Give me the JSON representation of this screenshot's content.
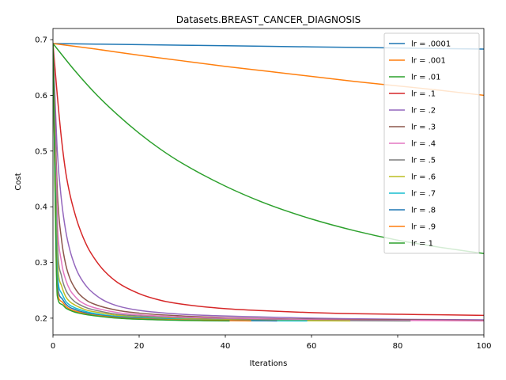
{
  "chart_data": {
    "type": "line",
    "title": "Datasets.BREAST_CANCER_DIAGNOSIS",
    "xlabel": "Iterations",
    "ylabel": "Cost",
    "xlim": [
      0,
      100
    ],
    "ylim": [
      0.17,
      0.72
    ],
    "xticks": [
      0,
      20,
      40,
      60,
      80,
      100
    ],
    "yticks": [
      0.2,
      0.3,
      0.4,
      0.5,
      0.6,
      0.7
    ],
    "ytick_labels": [
      "0.2",
      "0.3",
      "0.4",
      "0.5",
      "0.6",
      "0.7"
    ],
    "grid": false,
    "legend_position": "upper right",
    "series": [
      {
        "name": "lr = .0001",
        "color": "#1f77b4",
        "x": [
          0,
          20,
          40,
          60,
          80,
          100
        ],
        "y": [
          0.693,
          0.691,
          0.689,
          0.687,
          0.685,
          0.683
        ]
      },
      {
        "name": "lr = .001",
        "color": "#ff7f0e",
        "x": [
          0,
          10,
          20,
          30,
          40,
          50,
          60,
          70,
          80,
          90,
          100
        ],
        "y": [
          0.693,
          0.683,
          0.672,
          0.662,
          0.652,
          0.643,
          0.634,
          0.625,
          0.617,
          0.609,
          0.6
        ]
      },
      {
        "name": "lr = .01",
        "color": "#2ca02c",
        "x": [
          0,
          5,
          10,
          15,
          20,
          25,
          30,
          40,
          50,
          60,
          70,
          80,
          90,
          100
        ],
        "y": [
          0.693,
          0.645,
          0.602,
          0.565,
          0.532,
          0.503,
          0.478,
          0.437,
          0.404,
          0.378,
          0.357,
          0.34,
          0.327,
          0.316
        ]
      },
      {
        "name": "lr = .1",
        "color": "#d62728",
        "x": [
          0,
          1,
          2,
          3,
          4,
          5,
          6,
          8,
          10,
          12,
          15,
          20,
          25,
          30,
          40,
          50,
          60,
          70,
          80,
          90,
          100
        ],
        "y": [
          0.693,
          0.6,
          0.52,
          0.46,
          0.42,
          0.39,
          0.365,
          0.328,
          0.303,
          0.284,
          0.264,
          0.244,
          0.232,
          0.225,
          0.217,
          0.213,
          0.21,
          0.208,
          0.207,
          0.206,
          0.205
        ]
      },
      {
        "name": "lr = .2",
        "color": "#9467bd",
        "x": [
          0,
          1,
          2,
          3,
          4,
          5,
          6,
          8,
          10,
          12,
          15,
          20,
          30,
          40,
          60,
          80,
          100
        ],
        "y": [
          0.693,
          0.5,
          0.41,
          0.355,
          0.32,
          0.296,
          0.278,
          0.255,
          0.241,
          0.231,
          0.222,
          0.214,
          0.207,
          0.204,
          0.2,
          0.198,
          0.197
        ]
      },
      {
        "name": "lr = .3",
        "color": "#8c564b",
        "x": [
          0,
          1,
          2,
          3,
          4,
          5,
          6,
          8,
          10,
          15,
          20,
          30,
          40,
          60,
          80,
          100
        ],
        "y": [
          0.693,
          0.43,
          0.34,
          0.295,
          0.27,
          0.255,
          0.244,
          0.231,
          0.224,
          0.214,
          0.209,
          0.204,
          0.201,
          0.198,
          0.197,
          0.196
        ]
      },
      {
        "name": "lr = .4",
        "color": "#e377c2",
        "x": [
          0,
          1,
          2,
          3,
          4,
          5,
          6,
          8,
          10,
          15,
          20,
          30,
          40,
          60,
          80,
          100
        ],
        "y": [
          0.693,
          0.38,
          0.3,
          0.268,
          0.25,
          0.24,
          0.232,
          0.223,
          0.218,
          0.21,
          0.206,
          0.202,
          0.2,
          0.197,
          0.196,
          0.195
        ]
      },
      {
        "name": "lr = .5",
        "color": "#7f7f7f",
        "x": [
          0,
          1,
          2,
          3,
          4,
          5,
          6,
          8,
          10,
          15,
          20,
          30,
          40,
          60,
          83
        ],
        "y": [
          0.693,
          0.34,
          0.275,
          0.25,
          0.238,
          0.23,
          0.225,
          0.218,
          0.214,
          0.207,
          0.204,
          0.2,
          0.198,
          0.196,
          0.195
        ]
      },
      {
        "name": "lr = .6",
        "color": "#bcbd22",
        "x": [
          0,
          1,
          2,
          3,
          4,
          5,
          6,
          8,
          10,
          15,
          20,
          30,
          40,
          50,
          69
        ],
        "y": [
          0.693,
          0.31,
          0.258,
          0.238,
          0.229,
          0.224,
          0.22,
          0.214,
          0.211,
          0.205,
          0.202,
          0.199,
          0.197,
          0.196,
          0.195
        ]
      },
      {
        "name": "lr = .7",
        "color": "#17becf",
        "x": [
          0,
          1,
          2,
          3,
          4,
          5,
          6,
          8,
          10,
          15,
          20,
          30,
          40,
          59
        ],
        "y": [
          0.693,
          0.285,
          0.245,
          0.23,
          0.223,
          0.219,
          0.216,
          0.211,
          0.208,
          0.203,
          0.201,
          0.198,
          0.196,
          0.195
        ]
      },
      {
        "name": "lr = .8",
        "color": "#1f77b4",
        "x": [
          0,
          1,
          2,
          3,
          4,
          5,
          6,
          8,
          10,
          15,
          20,
          30,
          40,
          52
        ],
        "y": [
          0.693,
          0.265,
          0.236,
          0.225,
          0.219,
          0.216,
          0.213,
          0.209,
          0.206,
          0.202,
          0.2,
          0.197,
          0.196,
          0.195
        ]
      },
      {
        "name": "lr = .9",
        "color": "#ff7f0e",
        "x": [
          0,
          1,
          2,
          3,
          4,
          5,
          6,
          8,
          10,
          15,
          20,
          30,
          46
        ],
        "y": [
          0.693,
          0.25,
          0.23,
          0.221,
          0.216,
          0.213,
          0.211,
          0.207,
          0.205,
          0.201,
          0.199,
          0.197,
          0.195
        ]
      },
      {
        "name": "lr = 1",
        "color": "#2ca02c",
        "x": [
          0,
          1,
          2,
          3,
          4,
          5,
          6,
          8,
          10,
          15,
          20,
          30,
          41
        ],
        "y": [
          0.693,
          0.24,
          0.225,
          0.218,
          0.214,
          0.211,
          0.209,
          0.206,
          0.204,
          0.2,
          0.198,
          0.196,
          0.195
        ]
      }
    ]
  }
}
